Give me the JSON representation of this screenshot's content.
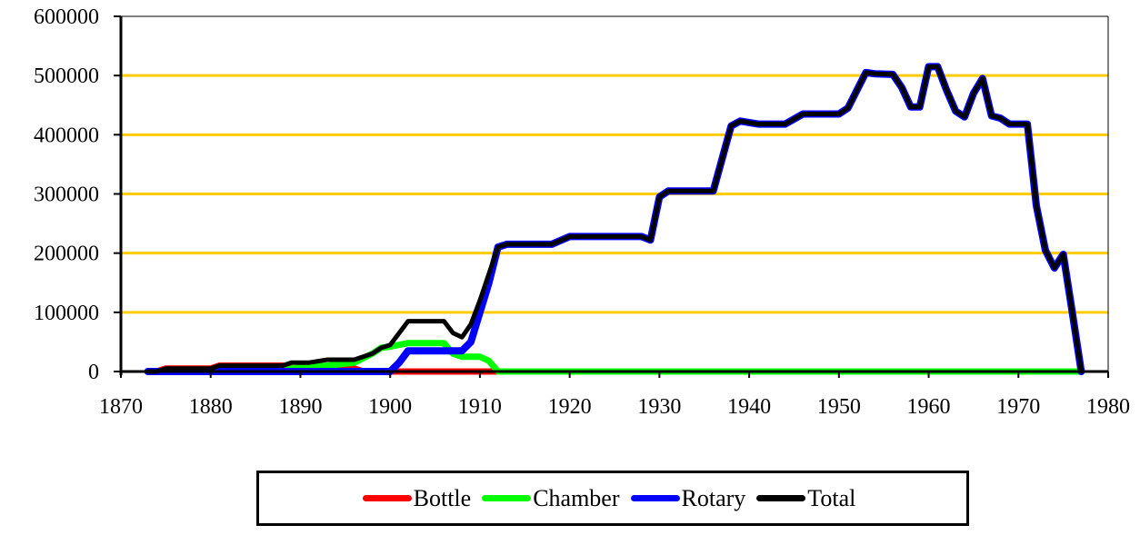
{
  "chart_data": {
    "type": "line",
    "title": "",
    "xlabel": "",
    "ylabel": "",
    "xlim": [
      1870,
      1980
    ],
    "ylim": [
      0,
      600000
    ],
    "x_ticks": [
      "1870",
      "1880",
      "1890",
      "1900",
      "1910",
      "1920",
      "1930",
      "1940",
      "1950",
      "1960",
      "1970",
      "1980"
    ],
    "y_ticks": [
      "0",
      "100000",
      "200000",
      "300000",
      "400000",
      "500000",
      "600000"
    ],
    "grid": {
      "horizontal": true,
      "color": "#FFCC00"
    },
    "legend_position": "bottom",
    "series": [
      {
        "name": "Bottle",
        "color": "#FF0000",
        "points": [
          [
            1873,
            0
          ],
          [
            1874,
            0
          ],
          [
            1875,
            5000
          ],
          [
            1880,
            5000
          ],
          [
            1881,
            10000
          ],
          [
            1888,
            10000
          ],
          [
            1889,
            5000
          ],
          [
            1893,
            5000
          ],
          [
            1895,
            8000
          ],
          [
            1896,
            5000
          ],
          [
            1897,
            0
          ],
          [
            1900,
            0
          ],
          [
            1901,
            0
          ],
          [
            1911,
            0
          ],
          [
            1912,
            0
          ]
        ]
      },
      {
        "name": "Chamber",
        "color": "#00FF00",
        "points": [
          [
            1873,
            0
          ],
          [
            1888,
            0
          ],
          [
            1889,
            5000
          ],
          [
            1893,
            10000
          ],
          [
            1896,
            15000
          ],
          [
            1898,
            30000
          ],
          [
            1899,
            40000
          ],
          [
            1900,
            42000
          ],
          [
            1902,
            48000
          ],
          [
            1906,
            48000
          ],
          [
            1907,
            30000
          ],
          [
            1908,
            25000
          ],
          [
            1910,
            25000
          ],
          [
            1911,
            18000
          ],
          [
            1912,
            0
          ],
          [
            1977,
            0
          ]
        ]
      },
      {
        "name": "Rotary",
        "color": "#0000FF",
        "points": [
          [
            1873,
            0
          ],
          [
            1900,
            0
          ],
          [
            1901,
            15000
          ],
          [
            1902,
            35000
          ],
          [
            1908,
            35000
          ],
          [
            1909,
            50000
          ],
          [
            1910,
            100000
          ],
          [
            1911,
            150000
          ],
          [
            1912,
            210000
          ],
          [
            1913,
            215000
          ],
          [
            1918,
            215000
          ],
          [
            1920,
            228000
          ],
          [
            1928,
            228000
          ],
          [
            1929,
            222000
          ],
          [
            1930,
            295000
          ],
          [
            1931,
            305000
          ],
          [
            1936,
            305000
          ],
          [
            1938,
            415000
          ],
          [
            1939,
            423000
          ],
          [
            1941,
            418000
          ],
          [
            1944,
            418000
          ],
          [
            1946,
            435000
          ],
          [
            1950,
            435000
          ],
          [
            1951,
            445000
          ],
          [
            1953,
            505000
          ],
          [
            1954,
            503000
          ],
          [
            1956,
            502000
          ],
          [
            1957,
            480000
          ],
          [
            1958,
            447000
          ],
          [
            1959,
            447000
          ],
          [
            1960,
            515000
          ],
          [
            1961,
            515000
          ],
          [
            1962,
            475000
          ],
          [
            1963,
            440000
          ],
          [
            1964,
            430000
          ],
          [
            1965,
            470000
          ],
          [
            1966,
            495000
          ],
          [
            1967,
            432000
          ],
          [
            1968,
            428000
          ],
          [
            1969,
            418000
          ],
          [
            1971,
            418000
          ],
          [
            1972,
            280000
          ],
          [
            1973,
            205000
          ],
          [
            1974,
            175000
          ],
          [
            1975,
            198000
          ],
          [
            1976,
            100000
          ],
          [
            1977,
            0
          ]
        ]
      },
      {
        "name": "Total",
        "color": "#000000",
        "points": [
          [
            1873,
            0
          ],
          [
            1874,
            0
          ],
          [
            1875,
            5000
          ],
          [
            1880,
            5000
          ],
          [
            1881,
            10000
          ],
          [
            1888,
            10000
          ],
          [
            1889,
            15000
          ],
          [
            1891,
            15000
          ],
          [
            1893,
            20000
          ],
          [
            1896,
            20000
          ],
          [
            1898,
            30000
          ],
          [
            1899,
            40000
          ],
          [
            1900,
            45000
          ],
          [
            1902,
            85000
          ],
          [
            1906,
            85000
          ],
          [
            1907,
            65000
          ],
          [
            1908,
            58000
          ],
          [
            1909,
            80000
          ],
          [
            1910,
            120000
          ],
          [
            1911,
            165000
          ],
          [
            1912,
            210000
          ],
          [
            1913,
            215000
          ],
          [
            1918,
            215000
          ],
          [
            1920,
            228000
          ],
          [
            1928,
            228000
          ],
          [
            1929,
            222000
          ],
          [
            1930,
            295000
          ],
          [
            1931,
            305000
          ],
          [
            1936,
            305000
          ],
          [
            1938,
            415000
          ],
          [
            1939,
            423000
          ],
          [
            1941,
            418000
          ],
          [
            1944,
            418000
          ],
          [
            1946,
            435000
          ],
          [
            1950,
            435000
          ],
          [
            1951,
            445000
          ],
          [
            1953,
            505000
          ],
          [
            1954,
            503000
          ],
          [
            1956,
            502000
          ],
          [
            1957,
            480000
          ],
          [
            1958,
            447000
          ],
          [
            1959,
            447000
          ],
          [
            1960,
            515000
          ],
          [
            1961,
            515000
          ],
          [
            1962,
            475000
          ],
          [
            1963,
            440000
          ],
          [
            1964,
            430000
          ],
          [
            1965,
            470000
          ],
          [
            1966,
            495000
          ],
          [
            1967,
            432000
          ],
          [
            1968,
            428000
          ],
          [
            1969,
            418000
          ],
          [
            1971,
            418000
          ],
          [
            1972,
            280000
          ],
          [
            1973,
            205000
          ],
          [
            1974,
            175000
          ],
          [
            1975,
            198000
          ],
          [
            1976,
            100000
          ],
          [
            1977,
            0
          ]
        ]
      }
    ]
  },
  "legend": {
    "items": [
      {
        "label": "Bottle",
        "color": "#FF0000"
      },
      {
        "label": "Chamber",
        "color": "#00FF00"
      },
      {
        "label": "Rotary",
        "color": "#0000FF"
      },
      {
        "label": "Total",
        "color": "#000000"
      }
    ]
  }
}
